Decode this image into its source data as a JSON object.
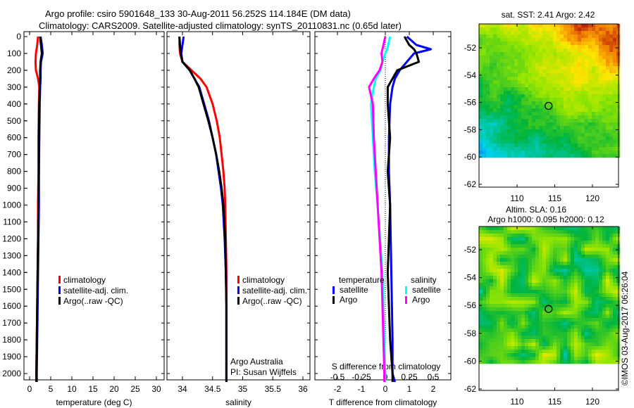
{
  "title": {
    "line1": "Argo profile: csiro 5901648_133 30-Aug-2011 56.252S 114.184E (DM data)",
    "line2": "Climatology: CARS2009. Satellite-adjusted climatology: synTS_20110831.nc (0.65d later)"
  },
  "colors": {
    "climatology": "#ff0000",
    "satellite": "#0000ff",
    "argo": "#000000",
    "sal_satellite": "#00ffff",
    "sal_argo": "#ff00ff"
  },
  "chart_data": [
    {
      "type": "line",
      "id": "temperature",
      "xlabel": "temperature (deg C)",
      "ylabel": "",
      "xlim": [
        -1.5,
        31
      ],
      "ylim": [
        2060,
        0
      ],
      "xticks": [
        0,
        5,
        10,
        15,
        20,
        25,
        30
      ],
      "yticks": [
        0,
        100,
        200,
        300,
        400,
        500,
        600,
        700,
        800,
        900,
        1000,
        1100,
        1200,
        1300,
        1400,
        1500,
        1600,
        1700,
        1800,
        1900,
        2000
      ],
      "depth": [
        0,
        50,
        100,
        150,
        200,
        250,
        300,
        400,
        600,
        800,
        1000,
        1200,
        1400,
        1600,
        1800,
        2000,
        2050
      ],
      "series": [
        {
          "name": "climatology",
          "color": "#ff0000",
          "values": [
            2.0,
            1.8,
            1.5,
            1.4,
            1.5,
            2.0,
            2.3,
            2.2,
            2.1,
            2.1,
            2.0,
            2.0,
            1.9,
            1.8,
            1.7,
            1.6,
            1.6
          ]
        },
        {
          "name": "satellite-adj. clim.",
          "color": "#0000ff",
          "values": [
            2.6,
            2.9,
            3.1,
            2.7,
            2.6,
            2.6,
            2.5,
            2.4,
            2.3,
            2.2,
            2.2,
            2.1,
            2.0,
            1.9,
            1.8,
            1.7,
            1.7
          ]
        },
        {
          "name": "Argo(..raw -QC)",
          "color": "#000000",
          "values": [
            2.5,
            2.7,
            2.9,
            2.6,
            2.5,
            2.5,
            2.4,
            2.3,
            2.2,
            2.2,
            2.1,
            2.0,
            1.9,
            1.8,
            1.7,
            1.6,
            1.6
          ]
        }
      ],
      "legend": [
        "climatology",
        "satellite-adj. clim.",
        "Argo(..raw -QC)"
      ]
    },
    {
      "type": "line",
      "id": "salinity",
      "xlabel": "salinity",
      "xlim": [
        33.75,
        36.05
      ],
      "ylim": [
        2060,
        0
      ],
      "xticks": [
        34,
        34.5,
        35,
        35.5,
        36
      ],
      "depth": [
        0,
        50,
        100,
        150,
        200,
        250,
        300,
        400,
        500,
        600,
        700,
        800,
        900,
        1000,
        1200,
        1400,
        1600,
        1800,
        2000,
        2050
      ],
      "series": [
        {
          "name": "climatology",
          "color": "#ff0000",
          "values": [
            33.95,
            33.95,
            33.96,
            34.0,
            34.15,
            34.3,
            34.4,
            34.5,
            34.57,
            34.62,
            34.65,
            34.68,
            34.7,
            34.71,
            34.72,
            34.73,
            34.73,
            34.73,
            34.73,
            34.73
          ]
        },
        {
          "name": "satellite-adj. clim.",
          "color": "#0000ff",
          "values": [
            34.02,
            34.0,
            33.98,
            34.0,
            34.12,
            34.2,
            34.28,
            34.36,
            34.44,
            34.5,
            34.56,
            34.6,
            34.64,
            34.67,
            34.7,
            34.72,
            34.73,
            34.73,
            34.73,
            34.73
          ]
        },
        {
          "name": "Argo(..raw -QC)",
          "color": "#000000",
          "values": [
            33.95,
            33.96,
            33.97,
            34.0,
            34.12,
            34.2,
            34.27,
            34.35,
            34.43,
            34.5,
            34.56,
            34.61,
            34.65,
            34.68,
            34.71,
            34.72,
            34.73,
            34.73,
            34.73,
            34.73
          ]
        }
      ],
      "legend": [
        "climatology",
        "satellite-adj. clim.",
        "Argo(..raw -QC)"
      ],
      "annotation": [
        "Argo Australia",
        "PI: Susan Wijffels"
      ]
    },
    {
      "type": "line",
      "id": "difference",
      "xlabel": "T difference from climatology",
      "x2label": "S difference from climatology",
      "xlim": [
        -2.95,
        2.75
      ],
      "x2lim": [
        -0.7375,
        0.6875
      ],
      "ylim": [
        2060,
        0
      ],
      "xticks": [
        -2,
        -1,
        0,
        1,
        2
      ],
      "x2ticks": [
        "-0.5",
        "-0.25",
        "0",
        "0.25",
        "0.5"
      ],
      "depth": [
        0,
        50,
        75,
        100,
        150,
        200,
        250,
        300,
        400,
        600,
        800,
        1000,
        1400,
        1800,
        2000,
        2050
      ],
      "series": [
        {
          "name": "temperature satellite",
          "axis": "T",
          "color": "#0000ff",
          "values": [
            0.9,
            1.3,
            1.9,
            1.2,
            0.9,
            0.6,
            0.4,
            0.3,
            0.2,
            0.15,
            0.15,
            0.2,
            0.25,
            0.3,
            0.3,
            0.4
          ]
        },
        {
          "name": "temperature Argo",
          "axis": "T",
          "color": "#000000",
          "values": [
            0.8,
            1.0,
            1.2,
            1.3,
            1.4,
            0.5,
            0.3,
            0.1,
            0.1,
            0.2,
            0.1,
            0.2,
            0.1,
            0.2,
            0.3,
            0.3
          ]
        },
        {
          "name": "salinity satellite",
          "axis": "S",
          "color": "#00ffff",
          "values": [
            0.05,
            0.03,
            0.02,
            0.0,
            -0.03,
            -0.05,
            -0.1,
            -0.12,
            -0.15,
            -0.13,
            -0.11,
            -0.08,
            -0.03,
            -0.01,
            0.0,
            0.0
          ]
        },
        {
          "name": "salinity Argo",
          "axis": "S",
          "color": "#ff00ff",
          "values": [
            0.0,
            -0.02,
            -0.03,
            -0.04,
            -0.03,
            -0.06,
            -0.12,
            -0.17,
            -0.13,
            -0.12,
            -0.1,
            -0.08,
            -0.04,
            -0.02,
            -0.01,
            -0.01
          ]
        }
      ],
      "legend_headers": [
        "temperature",
        "salinity"
      ],
      "legend": [
        "satellite",
        "Argo",
        "satellite",
        "Argo"
      ],
      "zero_line": 0
    },
    {
      "type": "heatmap",
      "id": "sst-map",
      "title": "sat. SST: 2.41  Argo: 2.42",
      "xlim": [
        105,
        123.5
      ],
      "ylim": [
        -62.2,
        -50.2
      ],
      "xticks": [
        110,
        115,
        120
      ],
      "yticks": [
        -52,
        -54,
        -56,
        -58,
        -60,
        -62
      ],
      "marker": {
        "lon": 114.184,
        "lat": -56.252
      }
    },
    {
      "type": "heatmap",
      "id": "sla-map",
      "title": "Altim. SLA: 0.16",
      "subtitle": "Argo h1000: 0.095 h2000: 0.12",
      "xlim": [
        105,
        123.5
      ],
      "ylim": [
        -62.2,
        -50.2
      ],
      "xticks": [
        110,
        115,
        120
      ],
      "yticks": [
        -52,
        -54,
        -56,
        -58,
        -60,
        -62
      ],
      "marker": {
        "lon": 114.184,
        "lat": -56.252
      }
    }
  ],
  "credit": "©IMOS 03-Aug-2017 06:26:04"
}
